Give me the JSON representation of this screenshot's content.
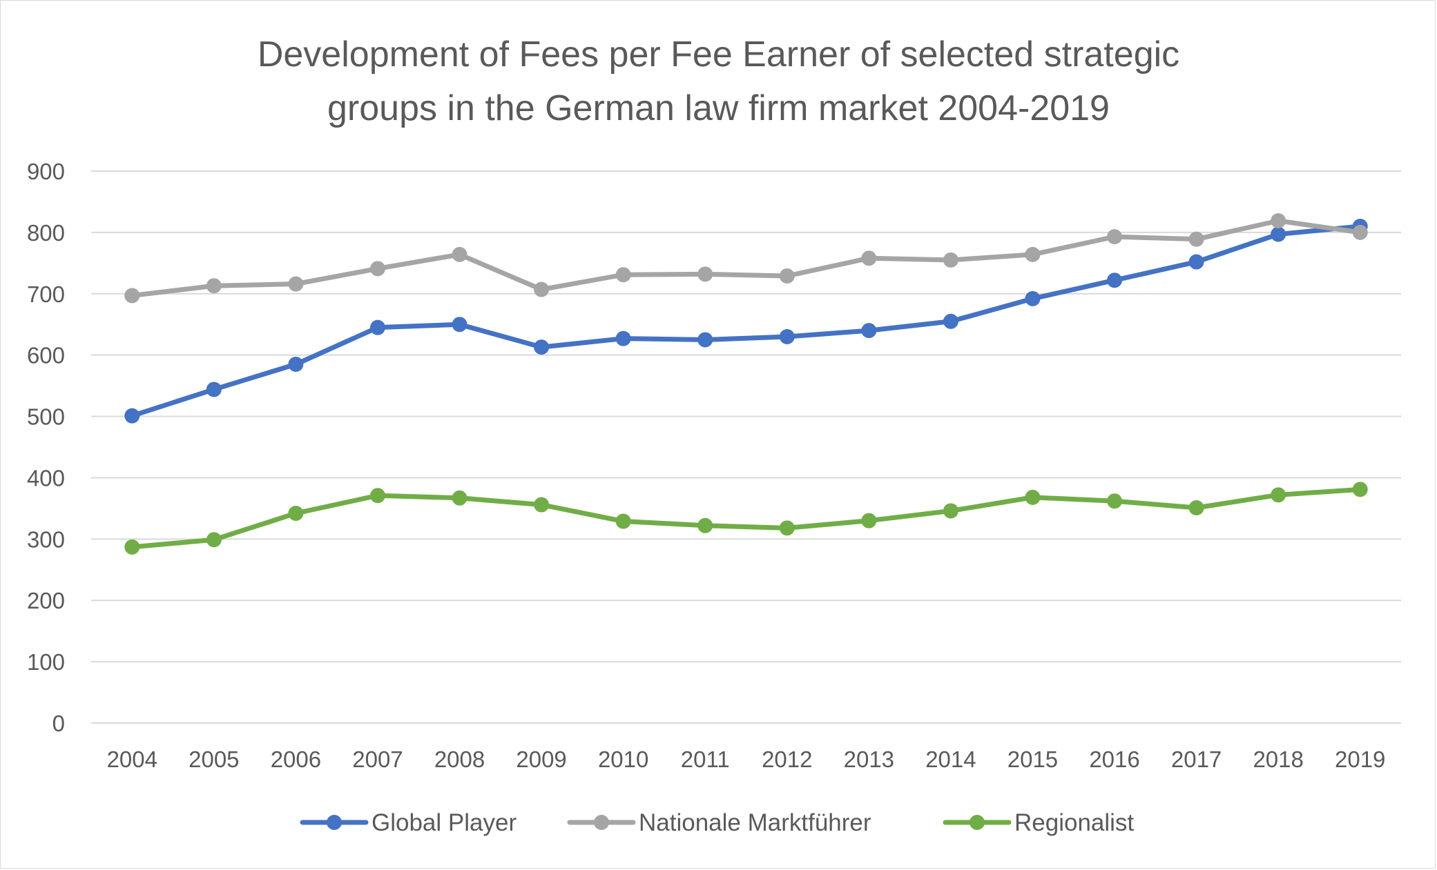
{
  "chart_data": {
    "type": "line",
    "title_line1": "Development of Fees per Fee Earner of selected strategic",
    "title_line2": "groups in the German law firm market 2004-2019",
    "categories": [
      "2004",
      "2005",
      "2006",
      "2007",
      "2008",
      "2009",
      "2010",
      "2011",
      "2012",
      "2013",
      "2014",
      "2015",
      "2016",
      "2017",
      "2018",
      "2019"
    ],
    "ylim": [
      0,
      900
    ],
    "yticks": [
      "0",
      "100",
      "200",
      "300",
      "400",
      "500",
      "600",
      "700",
      "800",
      "900"
    ],
    "grid": true,
    "legend_position": "bottom",
    "series": [
      {
        "name": "Global Player",
        "color": "#4472C4",
        "values": [
          501,
          544,
          585,
          645,
          650,
          613,
          627,
          625,
          630,
          640,
          655,
          692,
          722,
          752,
          797,
          810
        ]
      },
      {
        "name": "Nationale Marktführer",
        "color": "#A5A5A5",
        "values": [
          697,
          713,
          716,
          741,
          764,
          707,
          731,
          732,
          729,
          758,
          755,
          764,
          793,
          789,
          819,
          800
        ]
      },
      {
        "name": "Regionalist",
        "color": "#70AD47",
        "values": [
          287,
          299,
          342,
          371,
          367,
          356,
          329,
          322,
          318,
          330,
          346,
          368,
          362,
          351,
          372,
          381
        ]
      }
    ]
  }
}
